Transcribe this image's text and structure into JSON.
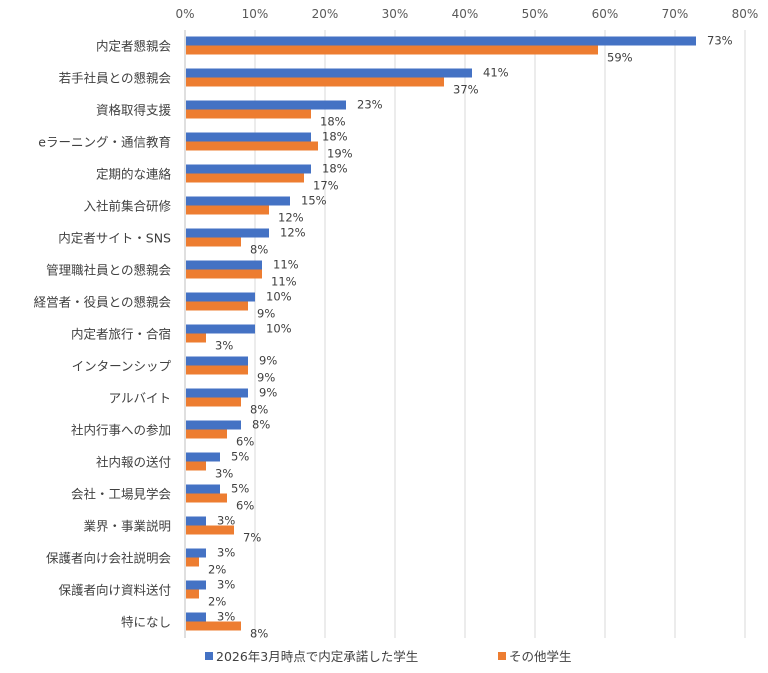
{
  "chart_data": {
    "type": "bar",
    "orientation": "horizontal",
    "x_ticks": [
      "0%",
      "10%",
      "20%",
      "30%",
      "40%",
      "50%",
      "60%",
      "70%",
      "80%"
    ],
    "xlim": [
      0,
      80
    ],
    "grid": true,
    "legend_position": "bottom",
    "categories": [
      "内定者懇親会",
      "若手社員との懇親会",
      "資格取得支援",
      "eラーニング・通信教育",
      "定期的な連絡",
      "入社前集合研修",
      "内定者サイト・SNS",
      "管理職社員との懇親会",
      "経営者・役員との懇親会",
      "内定者旅行・合宿",
      "インターンシップ",
      "アルバイト",
      "社内行事への参加",
      "社内報の送付",
      "会社・工場見学会",
      "業界・事業説明",
      "保護者向け会社説明会",
      "保護者向け資料送付",
      "特になし"
    ],
    "series": [
      {
        "name": "2026年3月時点で内定承諾した学生",
        "color": "#4472C4",
        "values": [
          73,
          41,
          23,
          18,
          18,
          15,
          12,
          11,
          10,
          10,
          9,
          9,
          8,
          5,
          5,
          3,
          3,
          3,
          3
        ],
        "labels": [
          "73%",
          "41%",
          "23%",
          "18%",
          "18%",
          "15%",
          "12%",
          "11%",
          "10%",
          "10%",
          "9%",
          "9%",
          "8%",
          "5%",
          "5%",
          "3%",
          "3%",
          "3%",
          "3%"
        ]
      },
      {
        "name": "その他学生",
        "color": "#ED7D31",
        "values": [
          59,
          37,
          18,
          19,
          17,
          12,
          8,
          11,
          9,
          3,
          9,
          8,
          6,
          3,
          6,
          7,
          2,
          2,
          8
        ],
        "labels": [
          "59%",
          "37%",
          "18%",
          "19%",
          "17%",
          "12%",
          "8%",
          "11%",
          "9%",
          "3%",
          "9%",
          "8%",
          "6%",
          "3%",
          "6%",
          "7%",
          "2%",
          "2%",
          "8%"
        ]
      }
    ]
  }
}
